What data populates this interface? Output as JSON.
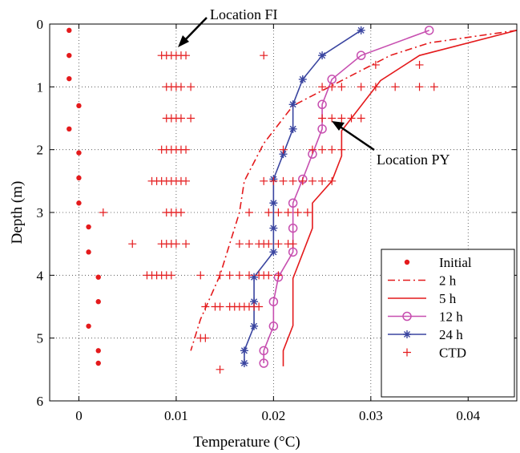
{
  "chart_data": {
    "type": "line",
    "xlabel": "Temperature (°C)",
    "ylabel": "Depth (m)",
    "xlim": [
      -0.003,
      0.045
    ],
    "ylim": [
      6,
      0
    ],
    "y_reversed": true,
    "xticks": [
      0,
      0.01,
      0.02,
      0.03,
      0.04
    ],
    "xtick_labels": [
      "0",
      "0.01",
      "0.02",
      "0.03",
      "0.04"
    ],
    "yticks": [
      0,
      1,
      2,
      3,
      4,
      5,
      6
    ],
    "ytick_labels": [
      "0",
      "1",
      "2",
      "3",
      "4",
      "5",
      "6"
    ],
    "grid": true,
    "grid_style": "dotted",
    "legend_position": "bottom-right",
    "colors": {
      "initial": "#e41a1c",
      "h2": "#e41a1c",
      "h5": "#e41a1c",
      "h12": "#c74fb0",
      "h24": "#3a45a0",
      "ctd": "#e41a1c"
    },
    "annotations": [
      {
        "text": "Location FI",
        "points_to": [
          0.0102,
          0.47
        ]
      },
      {
        "text": "Location PY",
        "points_to": [
          0.0255,
          1.62
        ]
      }
    ],
    "series": [
      {
        "name": "Initial",
        "key": "initial",
        "style": "dots",
        "x": [
          -0.001,
          -0.001,
          -0.001,
          0.0,
          -0.001,
          0.0,
          0.0,
          0.0,
          0.001,
          0.001,
          0.002,
          0.002,
          0.001,
          0.002,
          0.002
        ],
        "y": [
          0.1,
          0.5,
          0.87,
          1.3,
          1.67,
          2.05,
          2.45,
          2.85,
          3.23,
          3.63,
          4.03,
          4.42,
          4.81,
          5.2,
          5.4
        ]
      },
      {
        "name": "2 h",
        "key": "h2",
        "style": "dashdot",
        "x": [
          0.045,
          0.036,
          0.032,
          0.027,
          0.022,
          0.019,
          0.017,
          0.0165,
          0.0155,
          0.0145,
          0.0125,
          0.0115
        ],
        "y": [
          0.1,
          0.3,
          0.5,
          0.9,
          1.3,
          1.9,
          2.5,
          3.0,
          3.5,
          4.0,
          4.7,
          5.2
        ]
      },
      {
        "name": "5 h",
        "key": "h5",
        "style": "line",
        "x": [
          0.045,
          0.035,
          0.031,
          0.029,
          0.027,
          0.027,
          0.026,
          0.024,
          0.024,
          0.023,
          0.022,
          0.022,
          0.021,
          0.021
        ],
        "y": [
          0.1,
          0.5,
          0.9,
          1.3,
          1.7,
          2.1,
          2.5,
          2.85,
          3.25,
          3.65,
          4.05,
          4.8,
          5.2,
          5.45
        ]
      },
      {
        "name": "12 h",
        "key": "h12",
        "style": "line-circle",
        "x": [
          0.036,
          0.029,
          0.026,
          0.025,
          0.025,
          0.024,
          0.023,
          0.022,
          0.022,
          0.022,
          0.0205,
          0.02,
          0.02,
          0.019,
          0.019
        ],
        "y": [
          0.1,
          0.5,
          0.88,
          1.28,
          1.67,
          2.07,
          2.47,
          2.85,
          3.25,
          3.63,
          4.03,
          4.42,
          4.81,
          5.2,
          5.4
        ]
      },
      {
        "name": "24 h",
        "key": "h24",
        "style": "line-star",
        "x": [
          0.029,
          0.025,
          0.023,
          0.022,
          0.022,
          0.021,
          0.02,
          0.02,
          0.02,
          0.02,
          0.018,
          0.018,
          0.018,
          0.017,
          0.017
        ],
        "y": [
          0.1,
          0.5,
          0.88,
          1.28,
          1.67,
          2.07,
          2.47,
          2.85,
          3.25,
          3.63,
          4.03,
          4.42,
          4.81,
          5.2,
          5.4
        ]
      },
      {
        "name": "CTD",
        "key": "ctd",
        "style": "plus",
        "x": [
          0.0085,
          0.009,
          0.0095,
          0.01,
          0.0105,
          0.011,
          0.019,
          0.0305,
          0.035,
          0.009,
          0.0095,
          0.01,
          0.0105,
          0.0115,
          0.025,
          0.026,
          0.027,
          0.029,
          0.0305,
          0.0325,
          0.035,
          0.0365,
          0.009,
          0.0095,
          0.01,
          0.0105,
          0.0115,
          0.025,
          0.026,
          0.027,
          0.028,
          0.029,
          0.0085,
          0.009,
          0.0095,
          0.01,
          0.0105,
          0.011,
          0.021,
          0.024,
          0.025,
          0.026,
          0.027,
          0.0075,
          0.008,
          0.0085,
          0.009,
          0.0095,
          0.01,
          0.0105,
          0.011,
          0.019,
          0.02,
          0.021,
          0.022,
          0.023,
          0.024,
          0.025,
          0.026,
          0.0025,
          0.009,
          0.0095,
          0.01,
          0.0105,
          0.0175,
          0.0195,
          0.0205,
          0.0215,
          0.0225,
          0.0235,
          0.0055,
          0.0085,
          0.009,
          0.0095,
          0.01,
          0.011,
          0.0165,
          0.0175,
          0.0185,
          0.019,
          0.0195,
          0.0205,
          0.0215,
          0.022,
          0.007,
          0.0075,
          0.008,
          0.0085,
          0.009,
          0.0095,
          0.0125,
          0.0145,
          0.0155,
          0.0165,
          0.0175,
          0.0185,
          0.019,
          0.0195,
          0.0205,
          0.013,
          0.014,
          0.0145,
          0.0155,
          0.016,
          0.0165,
          0.017,
          0.0175,
          0.018,
          0.0185,
          0.0125,
          0.013,
          0.0145
        ],
        "y": [
          0.5,
          0.5,
          0.5,
          0.5,
          0.5,
          0.5,
          0.5,
          0.65,
          0.65,
          1.0,
          1.0,
          1.0,
          1.0,
          1.0,
          1.0,
          1.0,
          1.0,
          1.0,
          1.0,
          1.0,
          1.0,
          1.0,
          1.5,
          1.5,
          1.5,
          1.5,
          1.5,
          1.5,
          1.5,
          1.5,
          1.5,
          1.5,
          2.0,
          2.0,
          2.0,
          2.0,
          2.0,
          2.0,
          2.0,
          2.0,
          2.0,
          2.0,
          2.0,
          2.5,
          2.5,
          2.5,
          2.5,
          2.5,
          2.5,
          2.5,
          2.5,
          2.5,
          2.5,
          2.5,
          2.5,
          2.5,
          2.5,
          2.5,
          2.5,
          3.0,
          3.0,
          3.0,
          3.0,
          3.0,
          3.0,
          3.0,
          3.0,
          3.0,
          3.0,
          3.0,
          3.5,
          3.5,
          3.5,
          3.5,
          3.5,
          3.5,
          3.5,
          3.5,
          3.5,
          3.5,
          3.5,
          3.5,
          3.5,
          3.5,
          4.0,
          4.0,
          4.0,
          4.0,
          4.0,
          4.0,
          4.0,
          4.0,
          4.0,
          4.0,
          4.0,
          4.0,
          4.0,
          4.0,
          4.0,
          4.5,
          4.5,
          4.5,
          4.5,
          4.5,
          4.5,
          4.5,
          4.5,
          4.5,
          4.5,
          5.0,
          5.0,
          5.5
        ]
      }
    ]
  }
}
